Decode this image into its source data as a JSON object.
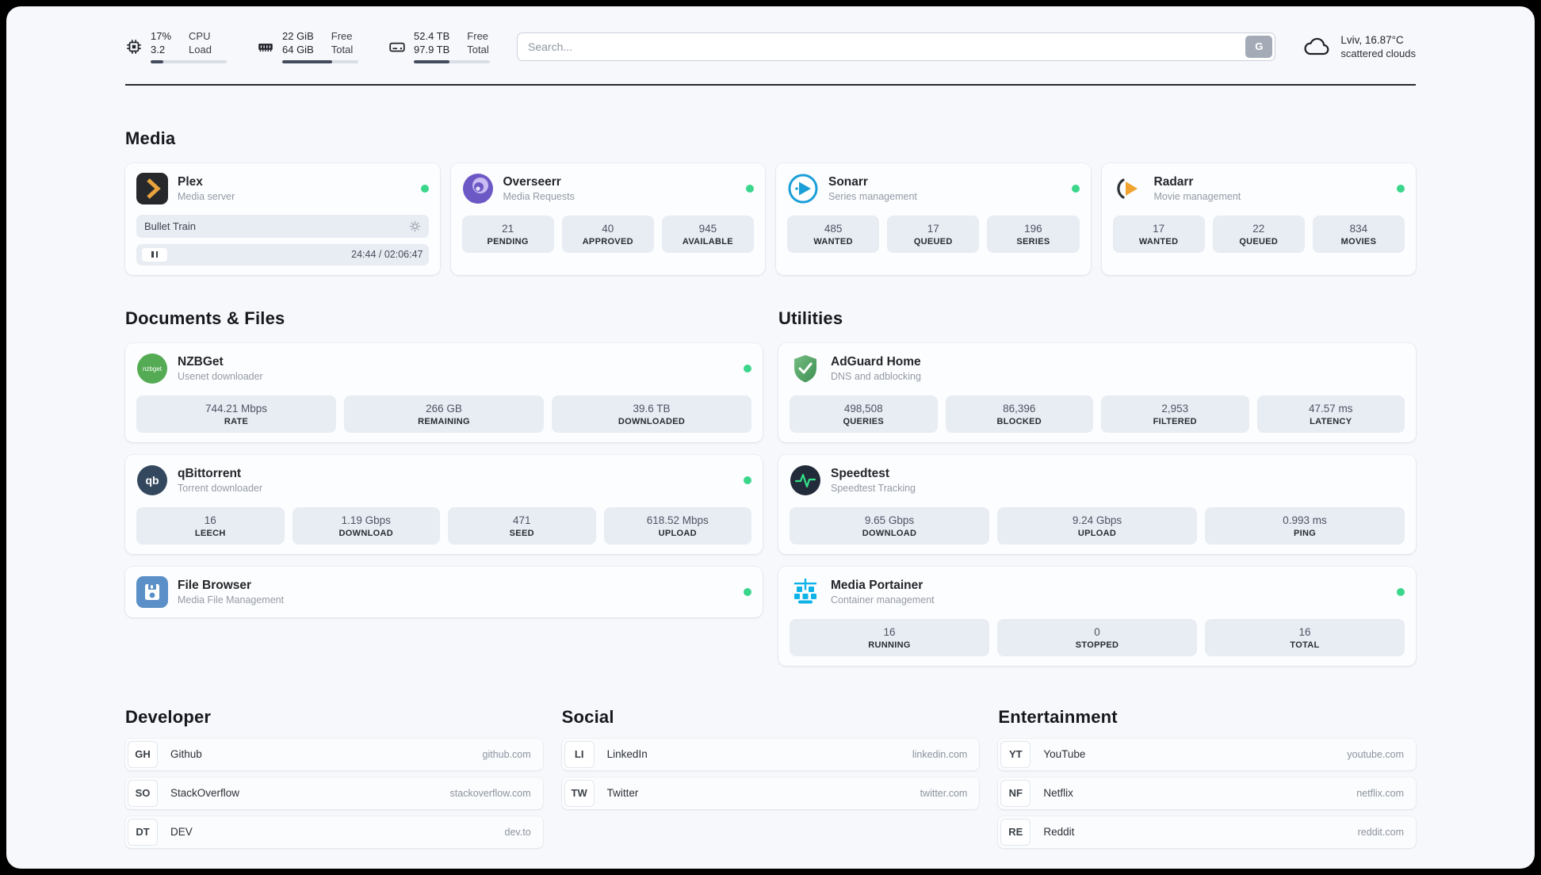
{
  "topbar": {
    "cpu": {
      "line1": "17%",
      "line2": "3.2",
      "lab1": "CPU",
      "lab2": "Load",
      "percent": 17
    },
    "ram": {
      "line1": "22 GiB",
      "line2": "64 GiB",
      "lab1": "Free",
      "lab2": "Total",
      "percent": 66
    },
    "disk": {
      "line1": "52.4 TB",
      "line2": "97.9 TB",
      "lab1": "Free",
      "lab2": "Total",
      "percent": 47
    },
    "search_placeholder": "Search...",
    "search_button": "G",
    "weather_location": "Lviv, 16.87°C",
    "weather_condition": "scattered clouds"
  },
  "colors": {
    "status_online": "#3ad68b",
    "accent_progress": "#434c5c",
    "stat_background": "#e8ecf3"
  },
  "media": {
    "title": "Media",
    "plex": {
      "name": "Plex",
      "subtitle": "Media server",
      "now_playing": "Bullet Train",
      "time": "24:44 / 02:06:47"
    },
    "overseerr": {
      "name": "Overseerr",
      "subtitle": "Media Requests",
      "stats": [
        {
          "value": "21",
          "label": "PENDING"
        },
        {
          "value": "40",
          "label": "APPROVED"
        },
        {
          "value": "945",
          "label": "AVAILABLE"
        }
      ]
    },
    "sonarr": {
      "name": "Sonarr",
      "subtitle": "Series management",
      "stats": [
        {
          "value": "485",
          "label": "WANTED"
        },
        {
          "value": "17",
          "label": "QUEUED"
        },
        {
          "value": "196",
          "label": "SERIES"
        }
      ]
    },
    "radarr": {
      "name": "Radarr",
      "subtitle": "Movie management",
      "stats": [
        {
          "value": "17",
          "label": "WANTED"
        },
        {
          "value": "22",
          "label": "QUEUED"
        },
        {
          "value": "834",
          "label": "MOVIES"
        }
      ]
    }
  },
  "documents": {
    "title": "Documents & Files",
    "nzbget": {
      "name": "NZBGet",
      "subtitle": "Usenet downloader",
      "icon_text": "nzbget",
      "stats": [
        {
          "value": "744.21 Mbps",
          "label": "RATE"
        },
        {
          "value": "266 GB",
          "label": "REMAINING"
        },
        {
          "value": "39.6 TB",
          "label": "DOWNLOADED"
        }
      ]
    },
    "qbittorrent": {
      "name": "qBittorrent",
      "subtitle": "Torrent downloader",
      "icon_text": "qb",
      "stats": [
        {
          "value": "16",
          "label": "LEECH"
        },
        {
          "value": "1.19 Gbps",
          "label": "DOWNLOAD"
        },
        {
          "value": "471",
          "label": "SEED"
        },
        {
          "value": "618.52 Mbps",
          "label": "UPLOAD"
        }
      ]
    },
    "filebrowser": {
      "name": "File Browser",
      "subtitle": "Media File Management"
    }
  },
  "utilities": {
    "title": "Utilities",
    "adguard": {
      "name": "AdGuard Home",
      "subtitle": "DNS and adblocking",
      "stats": [
        {
          "value": "498,508",
          "label": "QUERIES"
        },
        {
          "value": "86,396",
          "label": "BLOCKED"
        },
        {
          "value": "2,953",
          "label": "FILTERED"
        },
        {
          "value": "47.57 ms",
          "label": "LATENCY"
        }
      ]
    },
    "speedtest": {
      "name": "Speedtest",
      "subtitle": "Speedtest Tracking",
      "stats": [
        {
          "value": "9.65 Gbps",
          "label": "DOWNLOAD"
        },
        {
          "value": "9.24 Gbps",
          "label": "UPLOAD"
        },
        {
          "value": "0.993 ms",
          "label": "PING"
        }
      ]
    },
    "portainer": {
      "name": "Media Portainer",
      "subtitle": "Container management",
      "stats": [
        {
          "value": "16",
          "label": "RUNNING"
        },
        {
          "value": "0",
          "label": "STOPPED"
        },
        {
          "value": "16",
          "label": "TOTAL"
        }
      ]
    }
  },
  "bookmarks": {
    "developer": {
      "title": "Developer",
      "items": [
        {
          "abbr": "GH",
          "name": "Github",
          "url": "github.com"
        },
        {
          "abbr": "SO",
          "name": "StackOverflow",
          "url": "stackoverflow.com"
        },
        {
          "abbr": "DT",
          "name": "DEV",
          "url": "dev.to"
        }
      ]
    },
    "social": {
      "title": "Social",
      "items": [
        {
          "abbr": "LI",
          "name": "LinkedIn",
          "url": "linkedin.com"
        },
        {
          "abbr": "TW",
          "name": "Twitter",
          "url": "twitter.com"
        }
      ]
    },
    "entertainment": {
      "title": "Entertainment",
      "items": [
        {
          "abbr": "YT",
          "name": "YouTube",
          "url": "youtube.com"
        },
        {
          "abbr": "NF",
          "name": "Netflix",
          "url": "netflix.com"
        },
        {
          "abbr": "RE",
          "name": "Reddit",
          "url": "reddit.com"
        }
      ]
    }
  }
}
